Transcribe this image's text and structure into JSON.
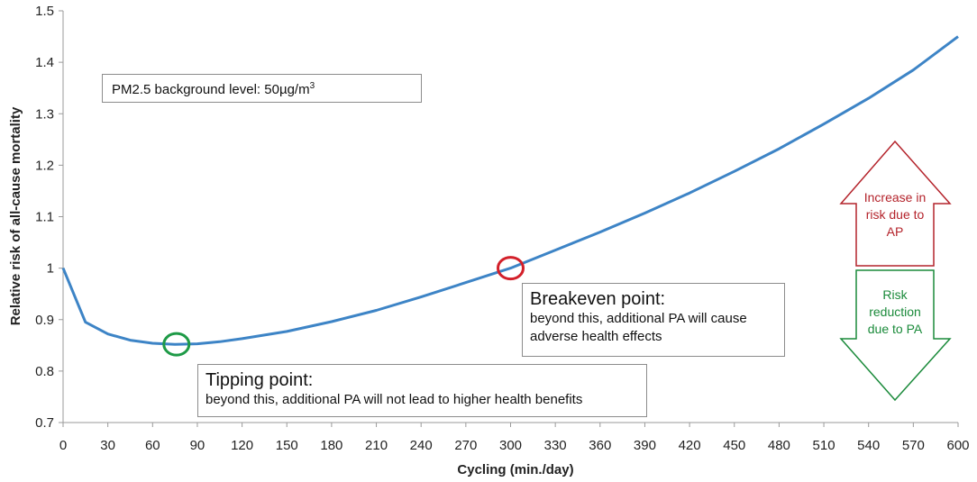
{
  "chart_data": {
    "type": "line",
    "title": "",
    "xlabel": "Cycling (min./day)",
    "ylabel": "Relative risk of all-cause mortality",
    "xlim": [
      0,
      600
    ],
    "ylim": [
      0.7,
      1.5
    ],
    "x_ticks": [
      "0",
      "30",
      "60",
      "90",
      "120",
      "150",
      "180",
      "210",
      "240",
      "270",
      "300",
      "330",
      "360",
      "390",
      "420",
      "450",
      "480",
      "510",
      "540",
      "570",
      "600"
    ],
    "y_ticks": [
      "0.7",
      "0.8",
      "0.9",
      "1",
      "1.1",
      "1.2",
      "1.3",
      "1.4",
      "1.5"
    ],
    "grid": false,
    "series": [
      {
        "color": "#3d84c6",
        "x": [
          0,
          10,
          15,
          30,
          45,
          60,
          75,
          90,
          105,
          120,
          150,
          180,
          210,
          240,
          270,
          300,
          330,
          360,
          390,
          420,
          450,
          480,
          510,
          540,
          570,
          600
        ],
        "y": [
          1.0,
          0.93,
          0.895,
          0.872,
          0.86,
          0.854,
          0.852,
          0.853,
          0.857,
          0.863,
          0.877,
          0.896,
          0.918,
          0.944,
          0.972,
          1.0,
          1.035,
          1.07,
          1.107,
          1.146,
          1.188,
          1.232,
          1.28,
          1.33,
          1.385,
          1.45
        ]
      }
    ],
    "markers": [
      {
        "name": "tipping-point",
        "x": 76,
        "y": 0.852,
        "color": "#1e9a47"
      },
      {
        "name": "breakeven-point",
        "x": 300,
        "y": 1.0,
        "color": "#d3202a"
      }
    ]
  },
  "annotations": {
    "pm_box": {
      "text": "PM2.5 background level: 50µg/m",
      "superscript": "3"
    },
    "breakeven": {
      "title": "Breakeven point:",
      "line1": "beyond this, additional PA will cause",
      "line2": "adverse health effects"
    },
    "tipping": {
      "title": "Tipping point:",
      "text": "beyond this, additional PA will not lead to higher health benefits"
    },
    "up_arrow": {
      "line1": "Increase in",
      "line2": "risk due to",
      "line3": "AP",
      "color": "#b4232b"
    },
    "down_arrow": {
      "line1": "Risk",
      "line2": "reduction",
      "line3": "due to PA",
      "color": "#1a8a3a"
    }
  }
}
